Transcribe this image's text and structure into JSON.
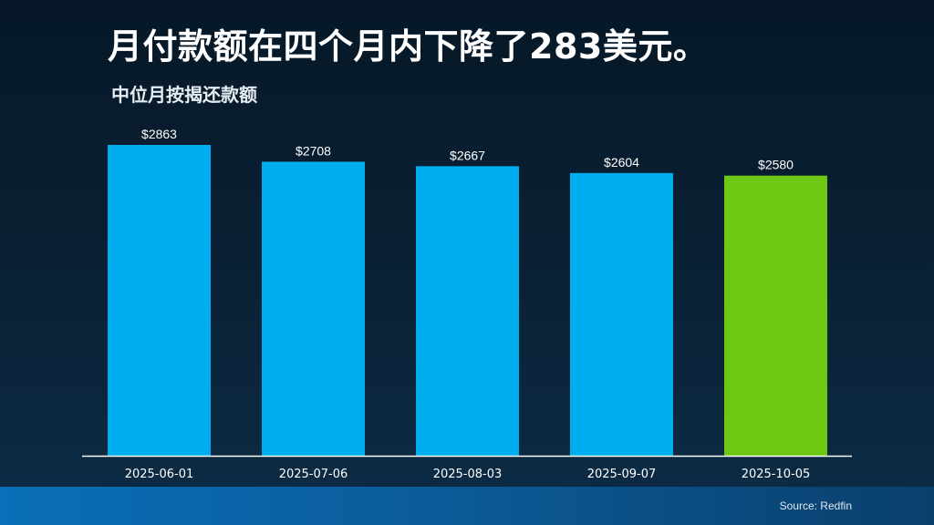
{
  "header": {
    "title": "月付款额在四个月内下降了283美元。",
    "subtitle": "中位月按揭还款额"
  },
  "footer": {
    "source": "Source: Redfin"
  },
  "colors": {
    "bar_default": "#00aeef",
    "bar_highlight": "#6ec712",
    "axis": "#ffffff",
    "label": "#ffffff"
  },
  "chart_data": {
    "type": "bar",
    "categories": [
      "2025-06-01",
      "2025-07-06",
      "2025-08-03",
      "2025-09-07",
      "2025-10-05"
    ],
    "values": [
      2863,
      2708,
      2667,
      2604,
      2580
    ],
    "data_labels": [
      "$2863",
      "$2708",
      "$2667",
      "$2604",
      "$2580"
    ],
    "highlight_index": 4,
    "title": "月付款额在四个月内下降了283美元。",
    "subtitle": "中位月按揭还款额",
    "xlabel": "",
    "ylabel": "",
    "ylim": [
      0,
      2863
    ],
    "grid": false,
    "legend": "none"
  }
}
